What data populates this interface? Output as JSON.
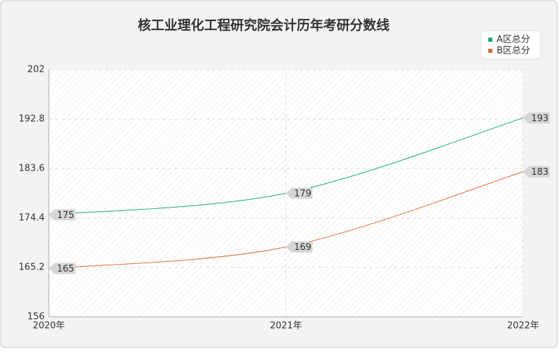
{
  "chart_data": {
    "type": "line",
    "title": "核工业理化工程研究院会计历年考研分数线",
    "categories": [
      "2020年",
      "2021年",
      "2022年"
    ],
    "series": [
      {
        "name": "A区总分",
        "color": "#1aa784",
        "values": [
          175,
          179,
          193
        ]
      },
      {
        "name": "B区总分",
        "color": "#e06a36",
        "values": [
          165,
          169,
          183
        ]
      }
    ],
    "ylim": [
      156,
      202
    ],
    "yticks": [
      156,
      165.2,
      174.4,
      183.6,
      192.8,
      202
    ],
    "grid": true,
    "legend": "top-right"
  }
}
